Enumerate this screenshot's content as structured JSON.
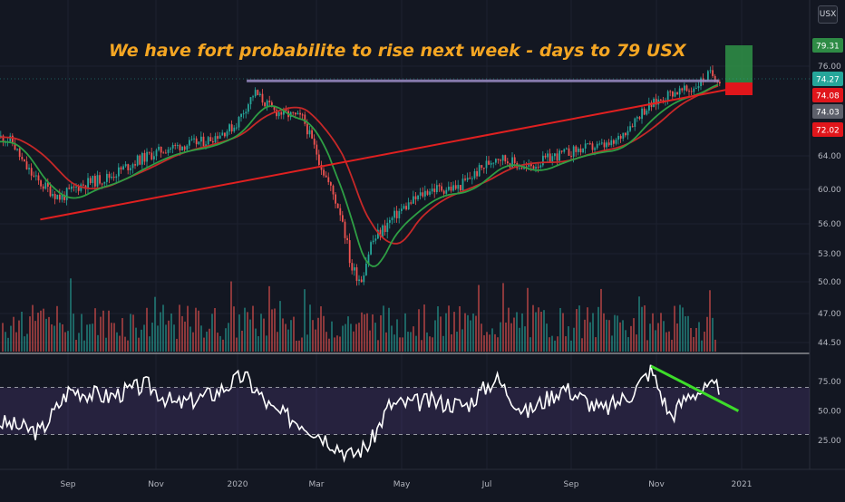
{
  "chart_data": [
    {
      "type": "candlestick",
      "title": "We have fort probabilite to rise next week - days to 79 USX",
      "currency_unit": "USX",
      "y_ticks": [
        76.0,
        64.0,
        60.0,
        56.0,
        53.0,
        50.0,
        47.0,
        44.5
      ],
      "y_ticks_labels": [
        "76.00",
        "64.00",
        "60.00",
        "56.00",
        "53.00",
        "50.00",
        "47.00",
        "44.50"
      ],
      "x_ticks": [
        "Sep",
        "Nov",
        "2020",
        "Mar",
        "May",
        "Jul",
        "Sep",
        "Nov",
        "2021"
      ],
      "price_tags": [
        {
          "label": "79.31",
          "value": 79.31,
          "color": "#2e8b45"
        },
        {
          "label": "74.27",
          "value": 74.27,
          "color": "#26a69a"
        },
        {
          "label": "74.08",
          "value": 74.08,
          "color": "#e0161b"
        },
        {
          "label": "74.03",
          "value": 74.03,
          "color": "#5d606b"
        },
        {
          "label": "72.02",
          "value": 72.02,
          "color": "#e0161b"
        }
      ],
      "approx_close_path": [
        {
          "date": "2019-07-15",
          "value": 66.5
        },
        {
          "date": "2019-08-05",
          "value": 62.5
        },
        {
          "date": "2019-08-26",
          "value": 59.0
        },
        {
          "date": "2019-09-09",
          "value": 60.5
        },
        {
          "date": "2019-09-30",
          "value": 61.5
        },
        {
          "date": "2019-10-21",
          "value": 63.5
        },
        {
          "date": "2019-11-11",
          "value": 65.0
        },
        {
          "date": "2019-12-09",
          "value": 66.0
        },
        {
          "date": "2019-12-30",
          "value": 68.0
        },
        {
          "date": "2020-01-13",
          "value": 72.5
        },
        {
          "date": "2020-01-27",
          "value": 70.0
        },
        {
          "date": "2020-02-17",
          "value": 69.0
        },
        {
          "date": "2020-03-02",
          "value": 62.5
        },
        {
          "date": "2020-03-16",
          "value": 57.0
        },
        {
          "date": "2020-03-23",
          "value": 51.5
        },
        {
          "date": "2020-03-30",
          "value": 50.2
        },
        {
          "date": "2020-04-06",
          "value": 54.0
        },
        {
          "date": "2020-04-27",
          "value": 57.5
        },
        {
          "date": "2020-05-18",
          "value": 60.0
        },
        {
          "date": "2020-06-08",
          "value": 60.2
        },
        {
          "date": "2020-07-06",
          "value": 64.0
        },
        {
          "date": "2020-07-27",
          "value": 62.5
        },
        {
          "date": "2020-08-17",
          "value": 64.0
        },
        {
          "date": "2020-09-07",
          "value": 65.0
        },
        {
          "date": "2020-09-28",
          "value": 65.5
        },
        {
          "date": "2020-10-19",
          "value": 70.0
        },
        {
          "date": "2020-11-09",
          "value": 72.5
        },
        {
          "date": "2020-11-23",
          "value": 72.8
        },
        {
          "date": "2020-12-07",
          "value": 75.0
        },
        {
          "date": "2020-12-14",
          "value": 74.27
        }
      ],
      "moving_averages": [
        {
          "color": "#c62828",
          "style": "slow moving average"
        },
        {
          "color": "#2e9e44",
          "style": "fast moving average"
        }
      ],
      "drawings": [
        {
          "kind": "horizontal-resistance",
          "value": 74.03,
          "from": "2020-01-08",
          "to": "2020-12-14",
          "color": "#9b8cc4"
        },
        {
          "kind": "rising-trendline",
          "from": {
            "date": "2019-08-12",
            "value": 56.5
          },
          "to": {
            "date": "2020-12-24",
            "value": 73.0
          },
          "color": "#e02020"
        },
        {
          "kind": "long-position-target",
          "entry": 74.08,
          "target": 79.31,
          "stop": 72.02
        }
      ],
      "volume_shown": true
    },
    {
      "type": "line",
      "indicator": "RSI",
      "y_ticks": [
        75.0,
        50.0,
        25.0
      ],
      "y_ticks_labels": [
        "75.00",
        "50.00",
        "25.00"
      ],
      "band": [
        30,
        70
      ],
      "approx_values": [
        {
          "date": "2019-07-15",
          "value": 40
        },
        {
          "date": "2019-08-12",
          "value": 32
        },
        {
          "date": "2019-09-02",
          "value": 68
        },
        {
          "date": "2019-09-30",
          "value": 62
        },
        {
          "date": "2019-10-28",
          "value": 72
        },
        {
          "date": "2019-11-18",
          "value": 55
        },
        {
          "date": "2019-12-16",
          "value": 65
        },
        {
          "date": "2020-01-06",
          "value": 80
        },
        {
          "date": "2020-01-27",
          "value": 50
        },
        {
          "date": "2020-02-17",
          "value": 40
        },
        {
          "date": "2020-03-09",
          "value": 24
        },
        {
          "date": "2020-03-23",
          "value": 12
        },
        {
          "date": "2020-04-06",
          "value": 22
        },
        {
          "date": "2020-04-20",
          "value": 55
        },
        {
          "date": "2020-05-18",
          "value": 58
        },
        {
          "date": "2020-06-15",
          "value": 55
        },
        {
          "date": "2020-07-06",
          "value": 78
        },
        {
          "date": "2020-07-27",
          "value": 48
        },
        {
          "date": "2020-08-24",
          "value": 70
        },
        {
          "date": "2020-09-21",
          "value": 50
        },
        {
          "date": "2020-10-12",
          "value": 65
        },
        {
          "date": "2020-10-26",
          "value": 85
        },
        {
          "date": "2020-11-09",
          "value": 45
        },
        {
          "date": "2020-11-23",
          "value": 65
        },
        {
          "date": "2020-12-14",
          "value": 70
        }
      ],
      "divergence_line": {
        "from": {
          "date": "2020-10-26",
          "value": 88
        },
        "to": {
          "date": "2020-12-28",
          "value": 50
        },
        "color": "#3ddc2a"
      }
    }
  ]
}
